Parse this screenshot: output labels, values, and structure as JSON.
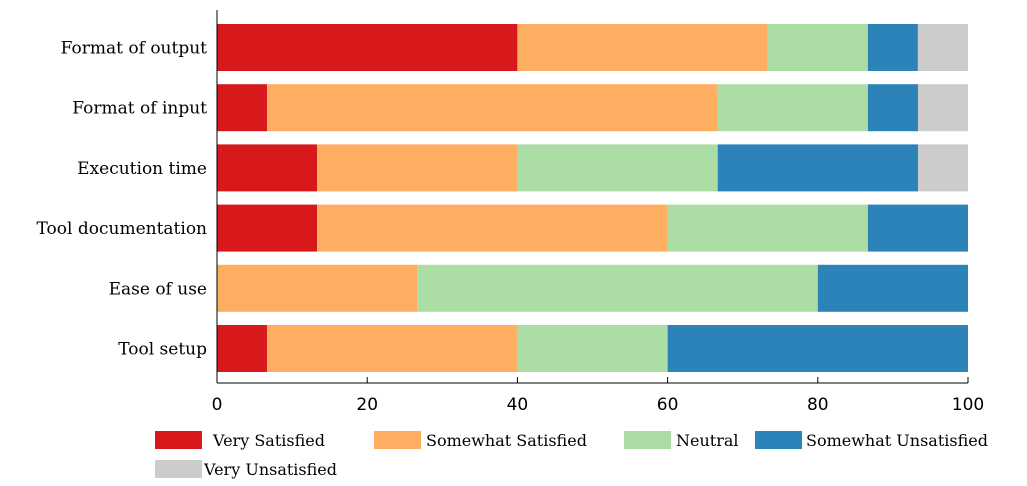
{
  "chart_data": {
    "type": "bar",
    "orientation": "horizontal",
    "stacked": true,
    "categories": [
      "Format of output",
      "Format of input",
      "Execution time",
      "Tool documentation",
      "Ease of use",
      "Tool setup"
    ],
    "series": [
      {
        "name": "Very Satisfied",
        "color": "#d7191c",
        "values": [
          40,
          6.67,
          13.33,
          13.33,
          0,
          6.67
        ]
      },
      {
        "name": "Somewhat Satisfied",
        "color": "#fdae61",
        "values": [
          33.33,
          60,
          26.67,
          46.67,
          26.67,
          33.33
        ]
      },
      {
        "name": "Neutral",
        "color": "#abdda4",
        "values": [
          13.33,
          20,
          26.67,
          26.67,
          53.33,
          20
        ]
      },
      {
        "name": "Somewhat Unsatisfied",
        "color": "#2b83ba",
        "values": [
          6.67,
          6.67,
          26.67,
          13.33,
          20,
          40
        ]
      },
      {
        "name": "Very Unsatisfied",
        "color": "#cccccc",
        "values": [
          6.67,
          6.67,
          6.67,
          0,
          0,
          0
        ]
      }
    ],
    "xlim": [
      0,
      100
    ],
    "xticks": [
      0,
      20,
      40,
      60,
      80,
      100
    ],
    "xlabel": "",
    "ylabel": "",
    "title": "",
    "grid": false,
    "legend_position": "bottom"
  }
}
